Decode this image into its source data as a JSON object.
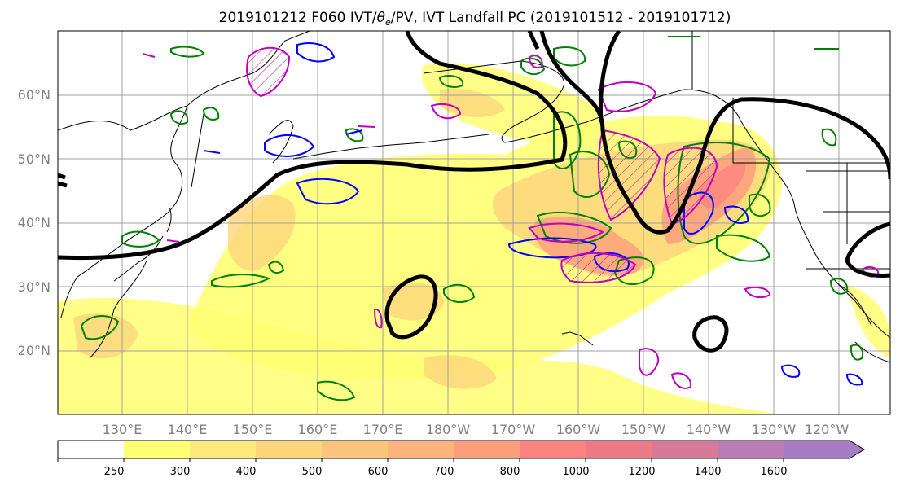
{
  "chart_data": {
    "type": "heatmap",
    "title": "2019101212 F060 IVT/θe/PV, IVT Landfall PC (2019101512 - 2019101712)",
    "title_parts": {
      "prefix": "2019101212 F060 IVT/",
      "theta": "θ",
      "theta_sub": "e",
      "suffix": "/PV, IVT Landfall PC (2019101512 - 2019101712)"
    },
    "x_ticks": [
      "130°E",
      "140°E",
      "150°E",
      "160°E",
      "170°E",
      "180°W",
      "170°W",
      "160°W",
      "150°W",
      "140°W",
      "130°W",
      "120°W"
    ],
    "y_ticks": [
      "60°N",
      "50°N",
      "40°N",
      "30°N",
      "20°N"
    ],
    "lon_range": [
      120,
      248
    ],
    "lat_range": [
      10,
      70
    ],
    "grid": true,
    "colorbar": {
      "orientation": "horizontal",
      "extend": "max",
      "levels": [
        250,
        300,
        400,
        500,
        600,
        700,
        800,
        1000,
        1200,
        1400,
        1600
      ],
      "tick_labels": [
        "250",
        "300",
        "400",
        "500",
        "600",
        "700",
        "800",
        "1000",
        "1200",
        "1400",
        "1600"
      ],
      "colors": [
        "#ffff73",
        "#fde97c",
        "#fdd67c",
        "#fdc47c",
        "#fdb47c",
        "#fc9e7c",
        "#fc8480",
        "#ee7a88",
        "#d77a98",
        "#b97cb4",
        "#a67cc4"
      ]
    },
    "contour_colors": {
      "theta_e": "#008000",
      "pv_blue": "#0000ff",
      "pv_magenta": "#c000c0",
      "landfall_pc": "#000000",
      "coastline": "#000000"
    }
  }
}
